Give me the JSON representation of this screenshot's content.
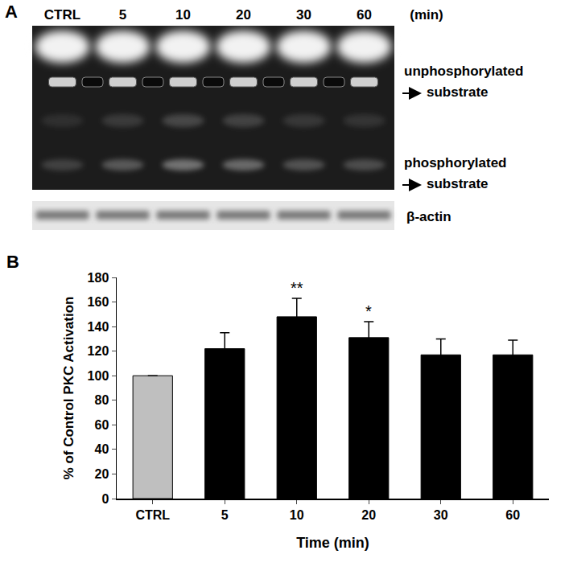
{
  "panel_a": {
    "label": "A",
    "lanes": [
      "CTRL",
      "5",
      "10",
      "20",
      "30",
      "60"
    ],
    "unit": "(min)",
    "band_labels": [
      "unphosphorylated substrate",
      "phosphorylated substrate"
    ],
    "loading_control": "β-actin"
  },
  "chart_data": {
    "label": "B",
    "type": "bar",
    "categories": [
      "CTRL",
      "5",
      "10",
      "20",
      "30",
      "60"
    ],
    "values": [
      100,
      122,
      148,
      131,
      117,
      117
    ],
    "errors": [
      null,
      13,
      15,
      13,
      13,
      12
    ],
    "significance": [
      null,
      null,
      "**",
      "*",
      null,
      null
    ],
    "colors": [
      "#bfbfbf",
      "#000000",
      "#000000",
      "#000000",
      "#000000",
      "#000000"
    ],
    "y_label": "% of Control PKC Activation",
    "x_label": "Time (min)",
    "ylim": [
      0,
      180
    ],
    "yticks": [
      0,
      20,
      40,
      60,
      80,
      100,
      120,
      140,
      160,
      180
    ],
    "grid": false
  }
}
